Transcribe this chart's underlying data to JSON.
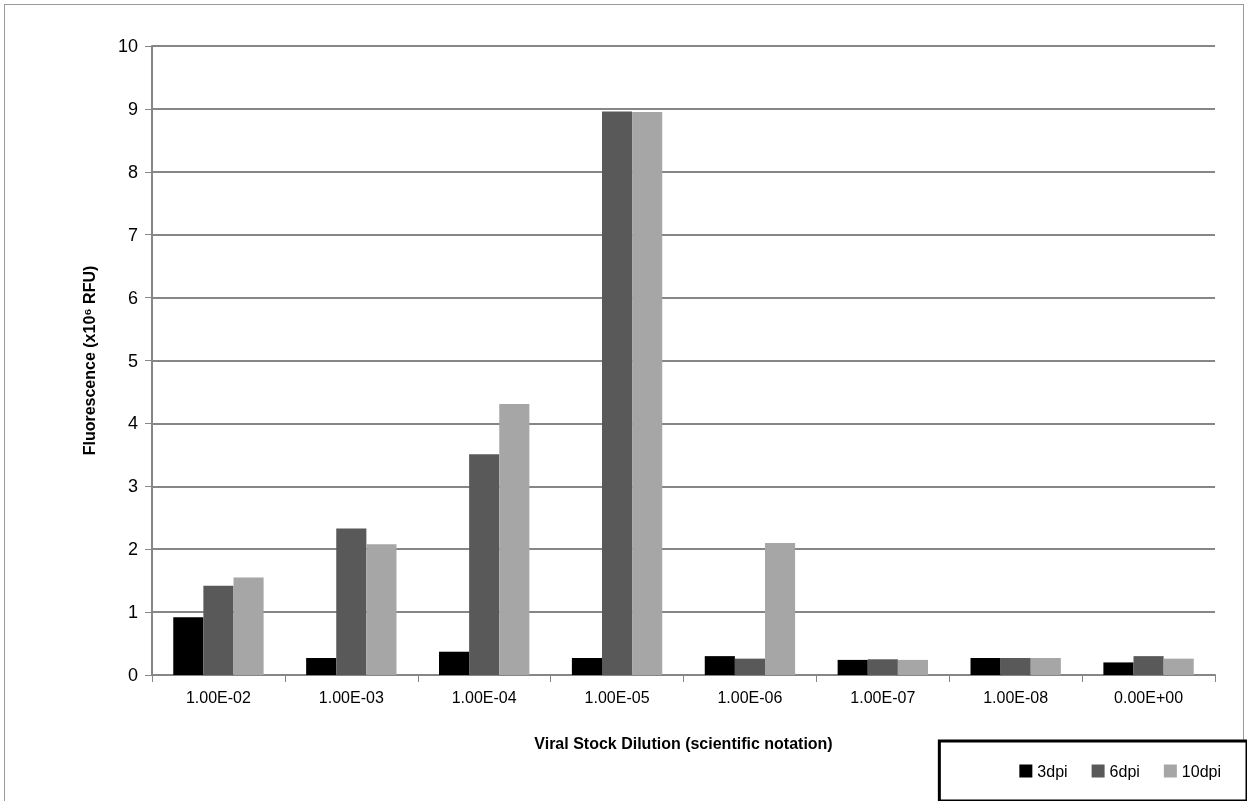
{
  "chart_data": {
    "type": "bar",
    "xlabel": "Viral Stock Dilution (scientific notation)",
    "ylabel": "Fluorescence (x10⁶ RFU)",
    "categories": [
      "1.00E-02",
      "1.00E-03",
      "1.00E-04",
      "1.00E-05",
      "1.00E-06",
      "1.00E-07",
      "1.00E-08",
      "0.00E+00"
    ],
    "series": [
      {
        "name": "3dpi",
        "color": "#000000",
        "values": [
          0.92,
          0.27,
          0.37,
          0.27,
          0.3,
          0.24,
          0.27,
          0.2
        ]
      },
      {
        "name": "6dpi",
        "color": "#595959",
        "values": [
          1.42,
          2.33,
          3.51,
          8.96,
          0.26,
          0.25,
          0.27,
          0.3
        ]
      },
      {
        "name": "10dpi",
        "color": "#a6a6a6",
        "values": [
          1.55,
          2.08,
          4.31,
          8.95,
          2.1,
          0.24,
          0.27,
          0.26
        ]
      }
    ],
    "ylim": [
      0,
      10
    ],
    "yticks": [
      0,
      1,
      2,
      3,
      4,
      5,
      6,
      7,
      8,
      9,
      10
    ],
    "grid": "y",
    "legend": "bottom right"
  }
}
